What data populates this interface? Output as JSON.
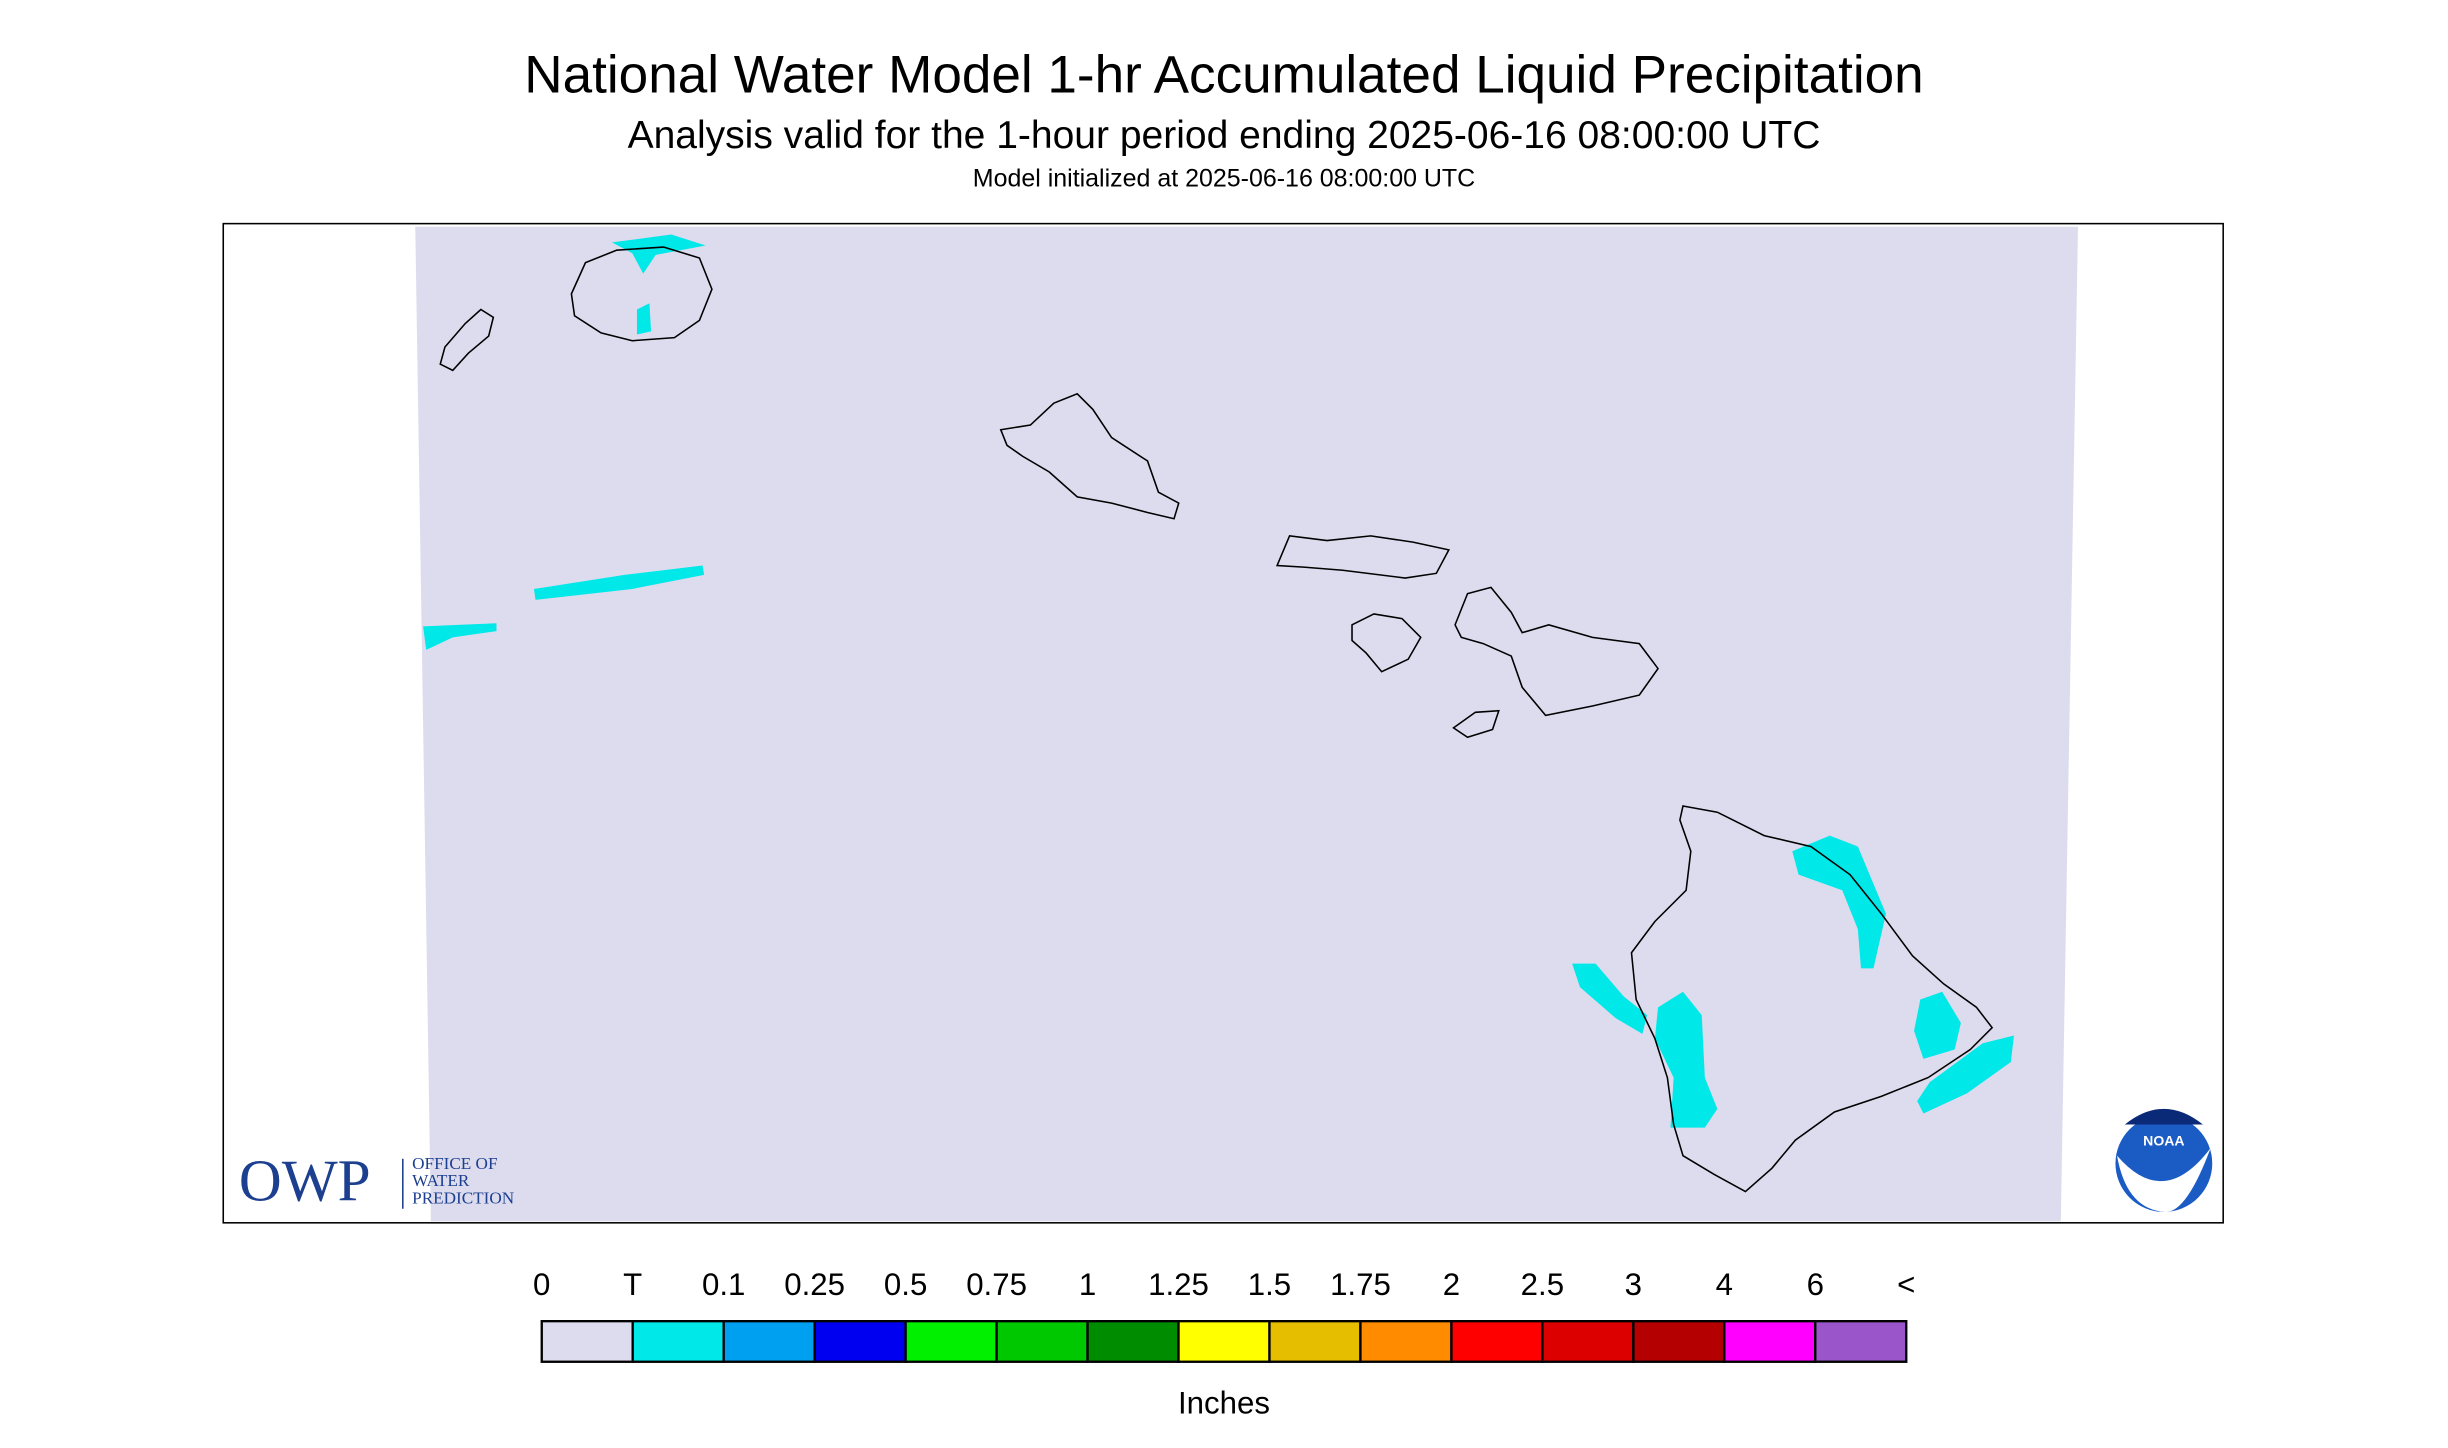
{
  "header": {
    "title": "National Water Model 1-hr Accumulated Liquid Precipitation",
    "subtitle": "Analysis valid for the 1-hour period ending 2025-06-16 08:00:00 UTC",
    "note": "Model initialized at 2025-06-16 08:00:00 UTC"
  },
  "legend": {
    "labels": [
      "0",
      "T",
      "0.1",
      "0.25",
      "0.5",
      "0.75",
      "1",
      "1.25",
      "1.5",
      "1.75",
      "2",
      "2.5",
      "3",
      "4",
      "6",
      "<"
    ],
    "colors": [
      "#dcdcee",
      "#00e8e8",
      "#00a0f0",
      "#0000f0",
      "#00f000",
      "#00c800",
      "#008c00",
      "#ffff00",
      "#e6be00",
      "#ff8c00",
      "#ff0000",
      "#dc0000",
      "#b40000",
      "#ff00ff",
      "#9955c9"
    ],
    "unit": "Inches"
  },
  "logos": {
    "owp": {
      "mark": "OWP",
      "lines": [
        "OFFICE OF",
        "WATER",
        "PREDICTION"
      ]
    },
    "noaa": "NOAA"
  }
}
